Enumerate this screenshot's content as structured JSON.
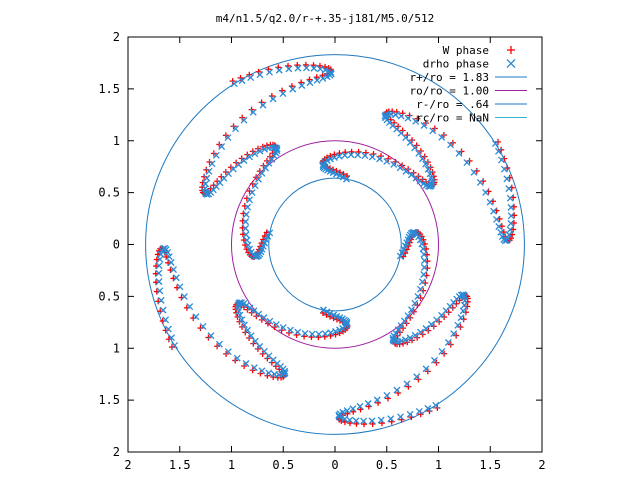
{
  "chart_data": {
    "type": "scatter",
    "title": "m4/n1.5/q2.0/r-+.35-j181/M5.0/512",
    "xlim": [
      -2,
      2
    ],
    "ylim": [
      -2,
      2
    ],
    "x_tick_values": [
      -2,
      -1.5,
      -1,
      -0.5,
      0,
      0.5,
      1,
      1.5,
      2
    ],
    "x_tick_labels": [
      "2",
      "1.5",
      "1",
      "0.5",
      "0",
      "0.5",
      "1",
      "1.5",
      "2"
    ],
    "y_tick_values": [
      2,
      1.5,
      1,
      0.5,
      0,
      -0.5,
      -1,
      -1.5,
      -2
    ],
    "y_tick_labels": [
      "2",
      "1.5",
      "1",
      "0.5",
      "0",
      "0.5",
      "1",
      "1.5",
      "2"
    ],
    "grid": false,
    "legend_position": "top-right",
    "series": [
      {
        "name": "W phase",
        "marker": "plus",
        "color": "#ff0000",
        "order": 4,
        "rotation_deg": -10,
        "radial_modulation": [
          {
            "harmonic": 4,
            "amplitude": 0.35
          }
        ],
        "r_range": [
          0.64,
          1.83
        ]
      },
      {
        "name": "drho phase",
        "marker": "cross",
        "color": "#2a8ad6",
        "order": 4,
        "rotation_deg": -10,
        "radial_modulation": [
          {
            "harmonic": 4,
            "amplitude": 0.35
          }
        ],
        "r_range": [
          0.64,
          1.83
        ]
      }
    ],
    "circles": [
      {
        "label": "r+/ro = 1.83",
        "radius": 1.83,
        "color": "#1f78c0"
      },
      {
        "label": "ro/ro = 1.00",
        "radius": 1.0,
        "color": "#a020a0"
      },
      {
        "label": "r-/ro = .64",
        "radius": 0.64,
        "color": "#1f78c0"
      },
      {
        "label": "rc/ro = NaN",
        "radius": null,
        "color": "#31b3cc"
      }
    ]
  }
}
